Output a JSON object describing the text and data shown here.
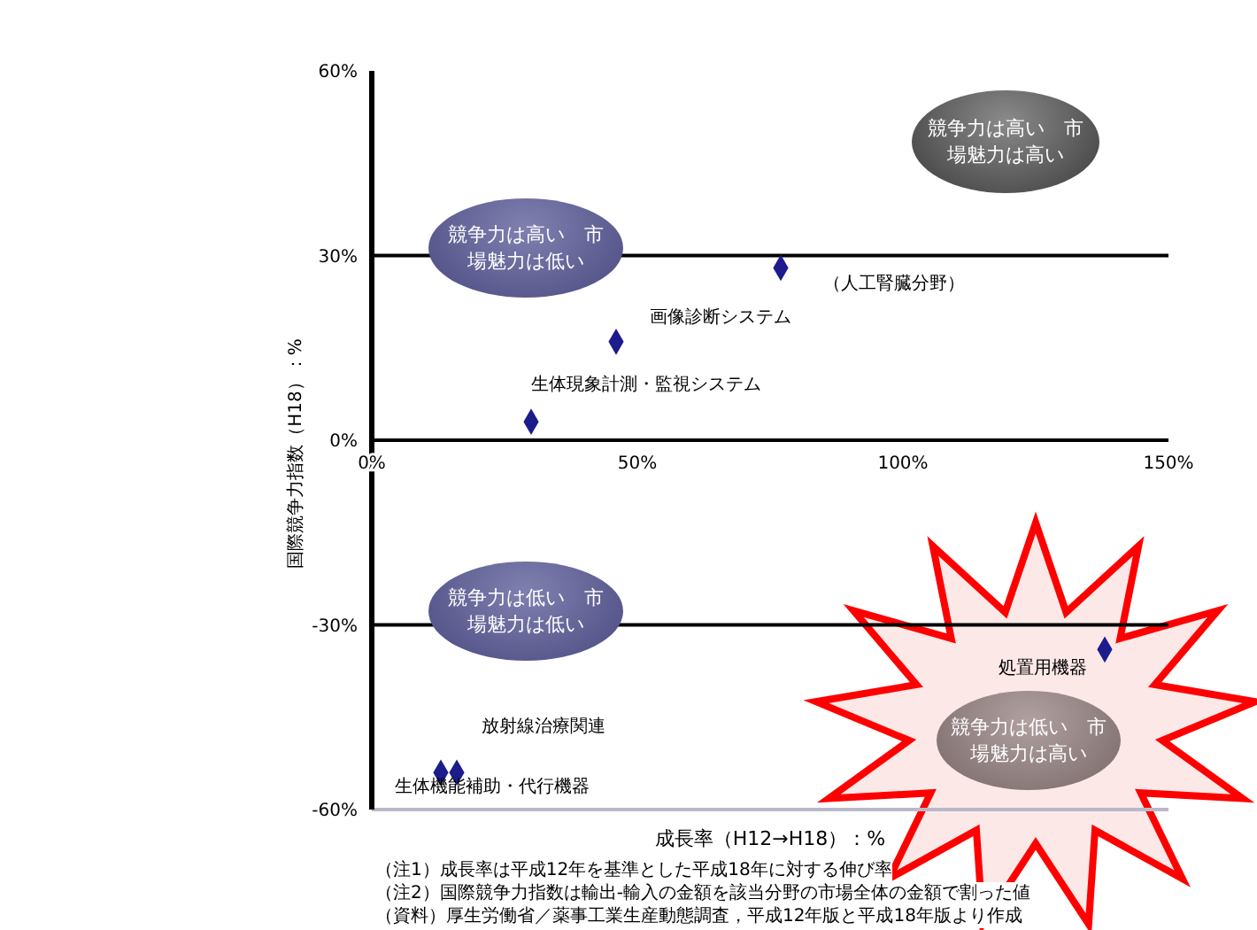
{
  "chart_data": {
    "type": "scatter",
    "x": [
      77,
      46,
      30,
      138,
      13,
      16
    ],
    "values": [
      28,
      16,
      3,
      -34,
      -54,
      -54
    ],
    "color": "#1c1c8c",
    "marker": "diamond",
    "xlim": [
      0,
      150
    ],
    "xticks": [
      {
        "value": 0,
        "label": "0%"
      },
      {
        "value": 50,
        "label": "50%"
      },
      {
        "value": 100,
        "label": "100%"
      },
      {
        "value": 150,
        "label": "150%"
      }
    ],
    "ylim": [
      -60,
      60
    ],
    "yticks": [
      {
        "value": -60,
        "label": "-60%"
      },
      {
        "value": -30,
        "label": "-30%"
      },
      {
        "value": 0,
        "label": "0%"
      },
      {
        "value": 30,
        "label": "30%"
      },
      {
        "value": 60,
        "label": "60%"
      }
    ],
    "xlabel": "成長率（H12→H18）：%",
    "ylabel": "国際競争力指数（H18）：%",
    "ref_lines": [
      {
        "axis": "y",
        "value": 30
      },
      {
        "axis": "y",
        "value": -30
      },
      {
        "axis": "y",
        "value": 0
      }
    ],
    "annotations": [
      "競争力は高い　市場魅力は高い",
      "競争力は高い　市場魅力は低い",
      "競争力は低い　市場魅力は低い",
      "競争力は低い　市場魅力は高い",
      {
        "text": "（人工腎臓分野）",
        "x": 77,
        "y": 28
      },
      {
        "text": "画像診断システム",
        "x": 46,
        "y": 16
      },
      {
        "text": "生体現象計測・監視システム",
        "x": 30,
        "y": 3
      },
      {
        "text": "処置用機器",
        "x": 138,
        "y": -34
      },
      {
        "text": "生体機能補助・代行機器",
        "x": 13,
        "y": -54
      },
      {
        "text": "放射線治療関連",
        "x": 16,
        "y": -54
      },
      "（注1）成長率は平成12年を基準とした平成18年に対する伸び率",
      "（注2）国際競争力指数は輸出-輸入の金額を該当分野の市場全体の金額で割った値",
      "（資料）厚生労働省／薬事工業生産動態調査，平成12年版と平成18年版より作成"
    ]
  }
}
